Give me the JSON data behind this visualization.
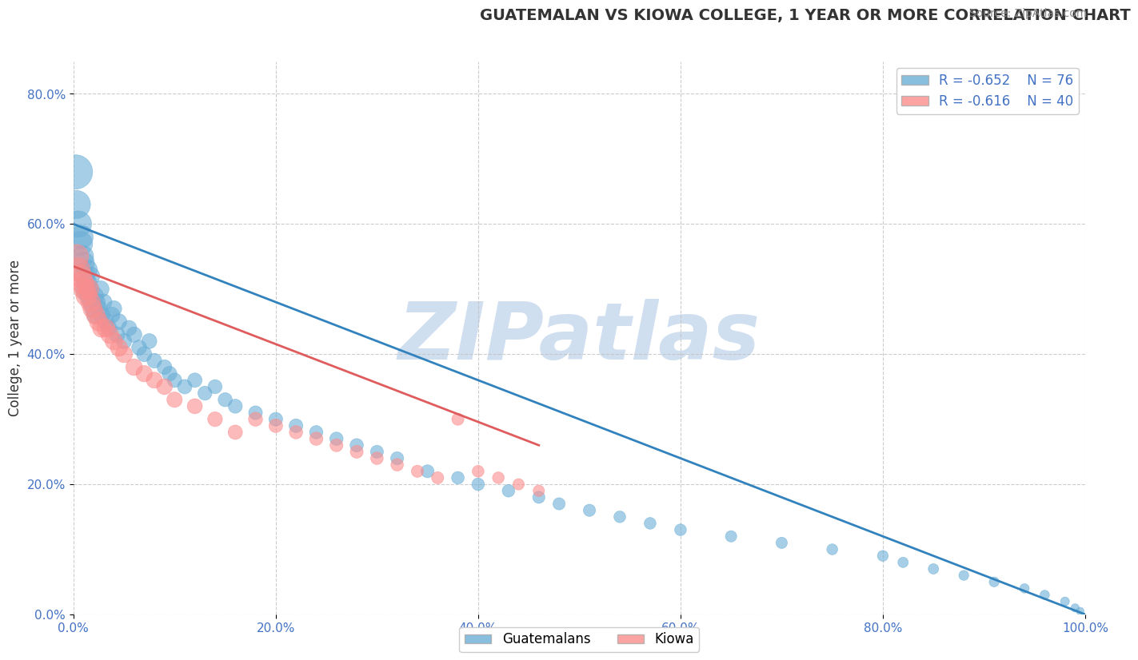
{
  "title": "GUATEMALAN VS KIOWA COLLEGE, 1 YEAR OR MORE CORRELATION CHART",
  "source_text": "Source: ZipAtlas.com",
  "xlabel": "",
  "ylabel": "College, 1 year or more",
  "xlim": [
    0.0,
    1.0
  ],
  "ylim": [
    0.0,
    0.85
  ],
  "xticks": [
    0.0,
    0.2,
    0.4,
    0.6,
    0.8,
    1.0
  ],
  "yticks": [
    0.0,
    0.2,
    0.4,
    0.6,
    0.8
  ],
  "xtick_labels": [
    "0.0%",
    "20.0%",
    "40.0%",
    "60.0%",
    "80.0%",
    "100.0%"
  ],
  "ytick_labels": [
    "0.0%",
    "20.0%",
    "40.0%",
    "60.0%",
    "80.0%"
  ],
  "legend_R1": "R = -0.652",
  "legend_N1": "N = 76",
  "legend_R2": "R = -0.616",
  "legend_N2": "N = 40",
  "blue_color": "#6baed6",
  "pink_color": "#fc8d8d",
  "blue_line_color": "#3182bd",
  "pink_line_color": "#e05c5c",
  "watermark": "ZIPatlas",
  "watermark_color": "#d0dff0",
  "legend_label1": "Guatemalans",
  "legend_label2": "Kiowa",
  "guatemalan_x": [
    0.002,
    0.003,
    0.005,
    0.007,
    0.008,
    0.009,
    0.01,
    0.011,
    0.012,
    0.013,
    0.014,
    0.015,
    0.016,
    0.017,
    0.018,
    0.02,
    0.021,
    0.022,
    0.023,
    0.025,
    0.027,
    0.028,
    0.03,
    0.032,
    0.035,
    0.038,
    0.04,
    0.043,
    0.045,
    0.05,
    0.055,
    0.06,
    0.065,
    0.07,
    0.075,
    0.08,
    0.09,
    0.095,
    0.1,
    0.11,
    0.12,
    0.13,
    0.14,
    0.15,
    0.16,
    0.18,
    0.2,
    0.22,
    0.24,
    0.26,
    0.28,
    0.3,
    0.32,
    0.35,
    0.38,
    0.4,
    0.43,
    0.46,
    0.48,
    0.51,
    0.54,
    0.57,
    0.6,
    0.65,
    0.7,
    0.75,
    0.8,
    0.82,
    0.85,
    0.88,
    0.91,
    0.94,
    0.96,
    0.98,
    0.99,
    0.995
  ],
  "guatemalan_y": [
    0.68,
    0.63,
    0.6,
    0.57,
    0.58,
    0.55,
    0.54,
    0.52,
    0.5,
    0.51,
    0.53,
    0.49,
    0.5,
    0.52,
    0.48,
    0.47,
    0.49,
    0.46,
    0.48,
    0.47,
    0.5,
    0.46,
    0.48,
    0.45,
    0.44,
    0.46,
    0.47,
    0.43,
    0.45,
    0.42,
    0.44,
    0.43,
    0.41,
    0.4,
    0.42,
    0.39,
    0.38,
    0.37,
    0.36,
    0.35,
    0.36,
    0.34,
    0.35,
    0.33,
    0.32,
    0.31,
    0.3,
    0.29,
    0.28,
    0.27,
    0.26,
    0.25,
    0.24,
    0.22,
    0.21,
    0.2,
    0.19,
    0.18,
    0.17,
    0.16,
    0.15,
    0.14,
    0.13,
    0.12,
    0.11,
    0.1,
    0.09,
    0.08,
    0.07,
    0.06,
    0.05,
    0.04,
    0.03,
    0.02,
    0.01,
    0.005
  ],
  "guatemalan_sizes": [
    120,
    80,
    70,
    60,
    55,
    50,
    48,
    45,
    42,
    40,
    38,
    36,
    35,
    34,
    33,
    32,
    31,
    30,
    30,
    29,
    28,
    28,
    27,
    27,
    26,
    26,
    25,
    25,
    25,
    24,
    24,
    24,
    23,
    23,
    23,
    22,
    22,
    22,
    21,
    21,
    21,
    20,
    20,
    20,
    20,
    19,
    19,
    19,
    18,
    18,
    18,
    17,
    17,
    17,
    16,
    16,
    16,
    15,
    15,
    15,
    14,
    14,
    14,
    13,
    13,
    12,
    12,
    11,
    11,
    10,
    10,
    9,
    9,
    8,
    7,
    6
  ],
  "kiowa_x": [
    0.003,
    0.005,
    0.007,
    0.009,
    0.011,
    0.013,
    0.015,
    0.017,
    0.019,
    0.022,
    0.025,
    0.028,
    0.032,
    0.036,
    0.04,
    0.045,
    0.05,
    0.06,
    0.07,
    0.08,
    0.09,
    0.1,
    0.12,
    0.14,
    0.16,
    0.18,
    0.2,
    0.22,
    0.24,
    0.26,
    0.28,
    0.3,
    0.32,
    0.34,
    0.36,
    0.38,
    0.4,
    0.42,
    0.44,
    0.46
  ],
  "kiowa_y": [
    0.55,
    0.53,
    0.52,
    0.51,
    0.5,
    0.49,
    0.5,
    0.48,
    0.47,
    0.46,
    0.45,
    0.44,
    0.44,
    0.43,
    0.42,
    0.41,
    0.4,
    0.38,
    0.37,
    0.36,
    0.35,
    0.33,
    0.32,
    0.3,
    0.28,
    0.3,
    0.29,
    0.28,
    0.27,
    0.26,
    0.25,
    0.24,
    0.23,
    0.22,
    0.21,
    0.3,
    0.22,
    0.21,
    0.2,
    0.19
  ],
  "kiowa_sizes": [
    60,
    55,
    52,
    50,
    48,
    45,
    42,
    40,
    38,
    36,
    35,
    34,
    33,
    32,
    31,
    30,
    29,
    28,
    27,
    26,
    25,
    24,
    23,
    22,
    21,
    20,
    19,
    18,
    18,
    17,
    17,
    16,
    16,
    15,
    15,
    15,
    14,
    14,
    13,
    13
  ],
  "blue_trend_x": [
    0.0,
    1.0
  ],
  "blue_trend_y": [
    0.6,
    0.0
  ],
  "pink_trend_x": [
    0.0,
    0.46
  ],
  "pink_trend_y": [
    0.535,
    0.26
  ]
}
